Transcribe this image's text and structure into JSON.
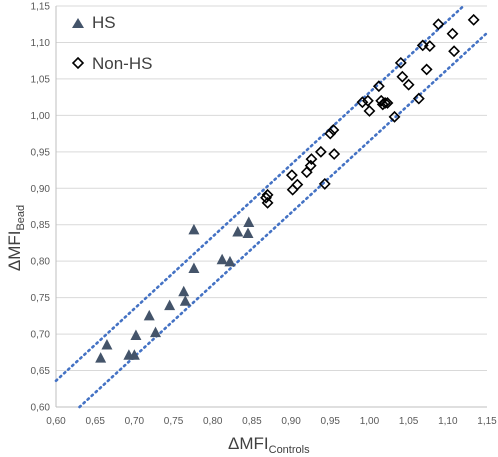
{
  "chart_data": {
    "type": "scatter",
    "xlabel": "ΔMFI",
    "xlabel_subscript": "Controls",
    "ylabel": "ΔMFI",
    "ylabel_subscript": "Bead",
    "xlim": [
      0.6,
      1.15
    ],
    "ylim": [
      0.6,
      1.15
    ],
    "x_ticks": [
      "0,60",
      "0,65",
      "0,70",
      "0,75",
      "0,80",
      "0,85",
      "0,90",
      "0,95",
      "1,00",
      "1,05",
      "1,10",
      "1,15"
    ],
    "y_ticks": [
      "0,60",
      "0,65",
      "0,70",
      "0,75",
      "0,80",
      "0,85",
      "0,90",
      "0,95",
      "1,00",
      "1,05",
      "1,10",
      "1,15"
    ],
    "grid": "horizontal",
    "legend_position": "top-left",
    "series": [
      {
        "name": "HS",
        "marker": "filled-triangle",
        "color": "#44546a",
        "points": [
          [
            0.657,
            0.667
          ],
          [
            0.665,
            0.685
          ],
          [
            0.693,
            0.671
          ],
          [
            0.7,
            0.671
          ],
          [
            0.702,
            0.698
          ],
          [
            0.719,
            0.725
          ],
          [
            0.727,
            0.702
          ],
          [
            0.745,
            0.739
          ],
          [
            0.763,
            0.758
          ],
          [
            0.765,
            0.745
          ],
          [
            0.776,
            0.79
          ],
          [
            0.776,
            0.843
          ],
          [
            0.812,
            0.802
          ],
          [
            0.822,
            0.799
          ],
          [
            0.832,
            0.84
          ],
          [
            0.845,
            0.838
          ],
          [
            0.846,
            0.853
          ]
        ]
      },
      {
        "name": "Non-HS",
        "marker": "open-diamond",
        "color": "#000000",
        "points": [
          [
            0.868,
            0.887
          ],
          [
            0.87,
            0.891
          ],
          [
            0.87,
            0.88
          ],
          [
            0.901,
            0.918
          ],
          [
            0.902,
            0.898
          ],
          [
            0.908,
            0.905
          ],
          [
            0.92,
            0.922
          ],
          [
            0.925,
            0.931
          ],
          [
            0.926,
            0.94
          ],
          [
            0.938,
            0.95
          ],
          [
            0.943,
            0.906
          ],
          [
            0.95,
            0.975
          ],
          [
            0.954,
            0.98
          ],
          [
            0.955,
            0.947
          ],
          [
            0.991,
            1.018
          ],
          [
            0.998,
            1.02
          ],
          [
            1.0,
            1.006
          ],
          [
            1.012,
            1.04
          ],
          [
            1.015,
            1.02
          ],
          [
            1.017,
            1.015
          ],
          [
            1.02,
            1.017
          ],
          [
            1.023,
            1.017
          ],
          [
            1.032,
            0.998
          ],
          [
            1.04,
            1.072
          ],
          [
            1.042,
            1.053
          ],
          [
            1.05,
            1.042
          ],
          [
            1.063,
            1.023
          ],
          [
            1.068,
            1.096
          ],
          [
            1.073,
            1.063
          ],
          [
            1.077,
            1.095
          ],
          [
            1.088,
            1.125
          ],
          [
            1.106,
            1.112
          ],
          [
            1.108,
            1.088
          ],
          [
            1.133,
            1.131
          ]
        ]
      }
    ],
    "reference_lines": [
      {
        "style": "dotted",
        "color": "#4472c4",
        "points": [
          [
            0.6,
            0.636
          ],
          [
            1.12,
            1.15
          ]
        ]
      },
      {
        "style": "dotted",
        "color": "#4472c4",
        "points": [
          [
            0.63,
            0.6
          ],
          [
            1.15,
            1.113
          ]
        ]
      }
    ]
  }
}
